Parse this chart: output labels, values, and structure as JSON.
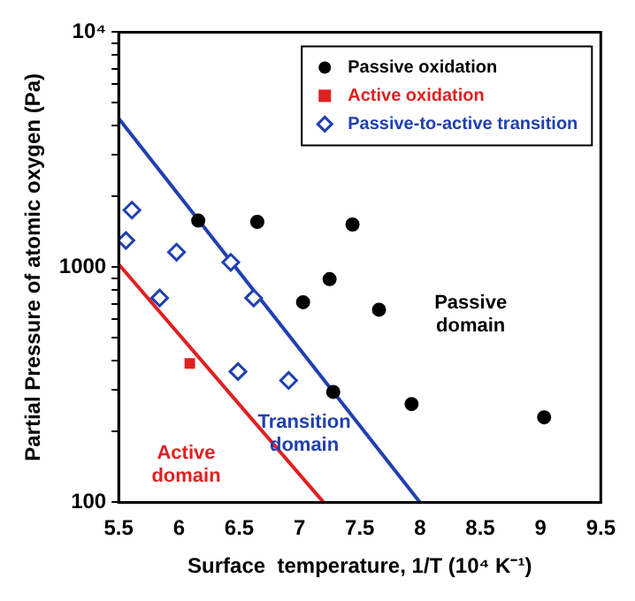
{
  "chart_data": {
    "type": "scatter",
    "xlabel": "Surface  temperature, 1/T (10⁴ K⁻¹)",
    "ylabel": "Partial Pressure of atomic oxygen (Pa)",
    "log": "y",
    "xlim": [
      5.5,
      9.5
    ],
    "ylim": [
      100,
      10000
    ],
    "xticks": [
      5.5,
      6,
      6.5,
      7,
      7.5,
      8,
      8.5,
      9,
      9.5
    ],
    "yticks": [
      100,
      {
        "value": 200,
        "label": null
      },
      {
        "value": 300,
        "label": null
      },
      {
        "value": 400,
        "label": null
      },
      {
        "value": 500,
        "label": null
      },
      {
        "value": 600,
        "label": null
      },
      {
        "value": 700,
        "label": null
      },
      {
        "value": 800,
        "label": null
      },
      {
        "value": 900,
        "label": null
      },
      1000,
      {
        "value": 2000,
        "label": null
      },
      {
        "value": 3000,
        "label": null
      },
      {
        "value": 4000,
        "label": null
      },
      {
        "value": 5000,
        "label": null
      },
      {
        "value": 6000,
        "label": null
      },
      {
        "value": 7000,
        "label": null
      },
      {
        "value": 8000,
        "label": null
      },
      {
        "value": 9000,
        "label": null
      },
      {
        "value": 10000,
        "label": "10⁴"
      }
    ],
    "grid": false,
    "legend": "top right",
    "series": [
      {
        "name": "Passive oxidation",
        "color": "#000000",
        "marker": "circle",
        "x": [
          6.16,
          6.65,
          7.44,
          7.25,
          7.03,
          7.66,
          7.28,
          7.93,
          9.03
        ],
        "values": [
          1580,
          1560,
          1520,
          890,
          710,
          660,
          295,
          262,
          230
        ]
      },
      {
        "name": "Active oxidation",
        "color": "#e02020",
        "marker": "square",
        "x": [
          6.09
        ],
        "values": [
          390
        ]
      },
      {
        "name": "Passive-to-active transition",
        "color": "#2040b0",
        "marker": "diamond",
        "x": [
          5.61,
          5.56,
          5.98,
          6.43,
          5.84,
          6.62,
          6.49,
          6.91
        ],
        "values": [
          1750,
          1300,
          1160,
          1050,
          740,
          740,
          360,
          330
        ]
      },
      {
        "type": "line",
        "color": "#2040b0",
        "marker": "none",
        "x": [
          5.5,
          8.0
        ],
        "values": [
          4300,
          100
        ]
      },
      {
        "type": "line",
        "color": "#e02020",
        "marker": "none",
        "x": [
          5.5,
          7.2
        ],
        "values": [
          1030,
          100
        ]
      }
    ],
    "annotations": [
      "Passive\ndomain",
      "Transition\ndomain",
      "Active\ndomain"
    ]
  }
}
